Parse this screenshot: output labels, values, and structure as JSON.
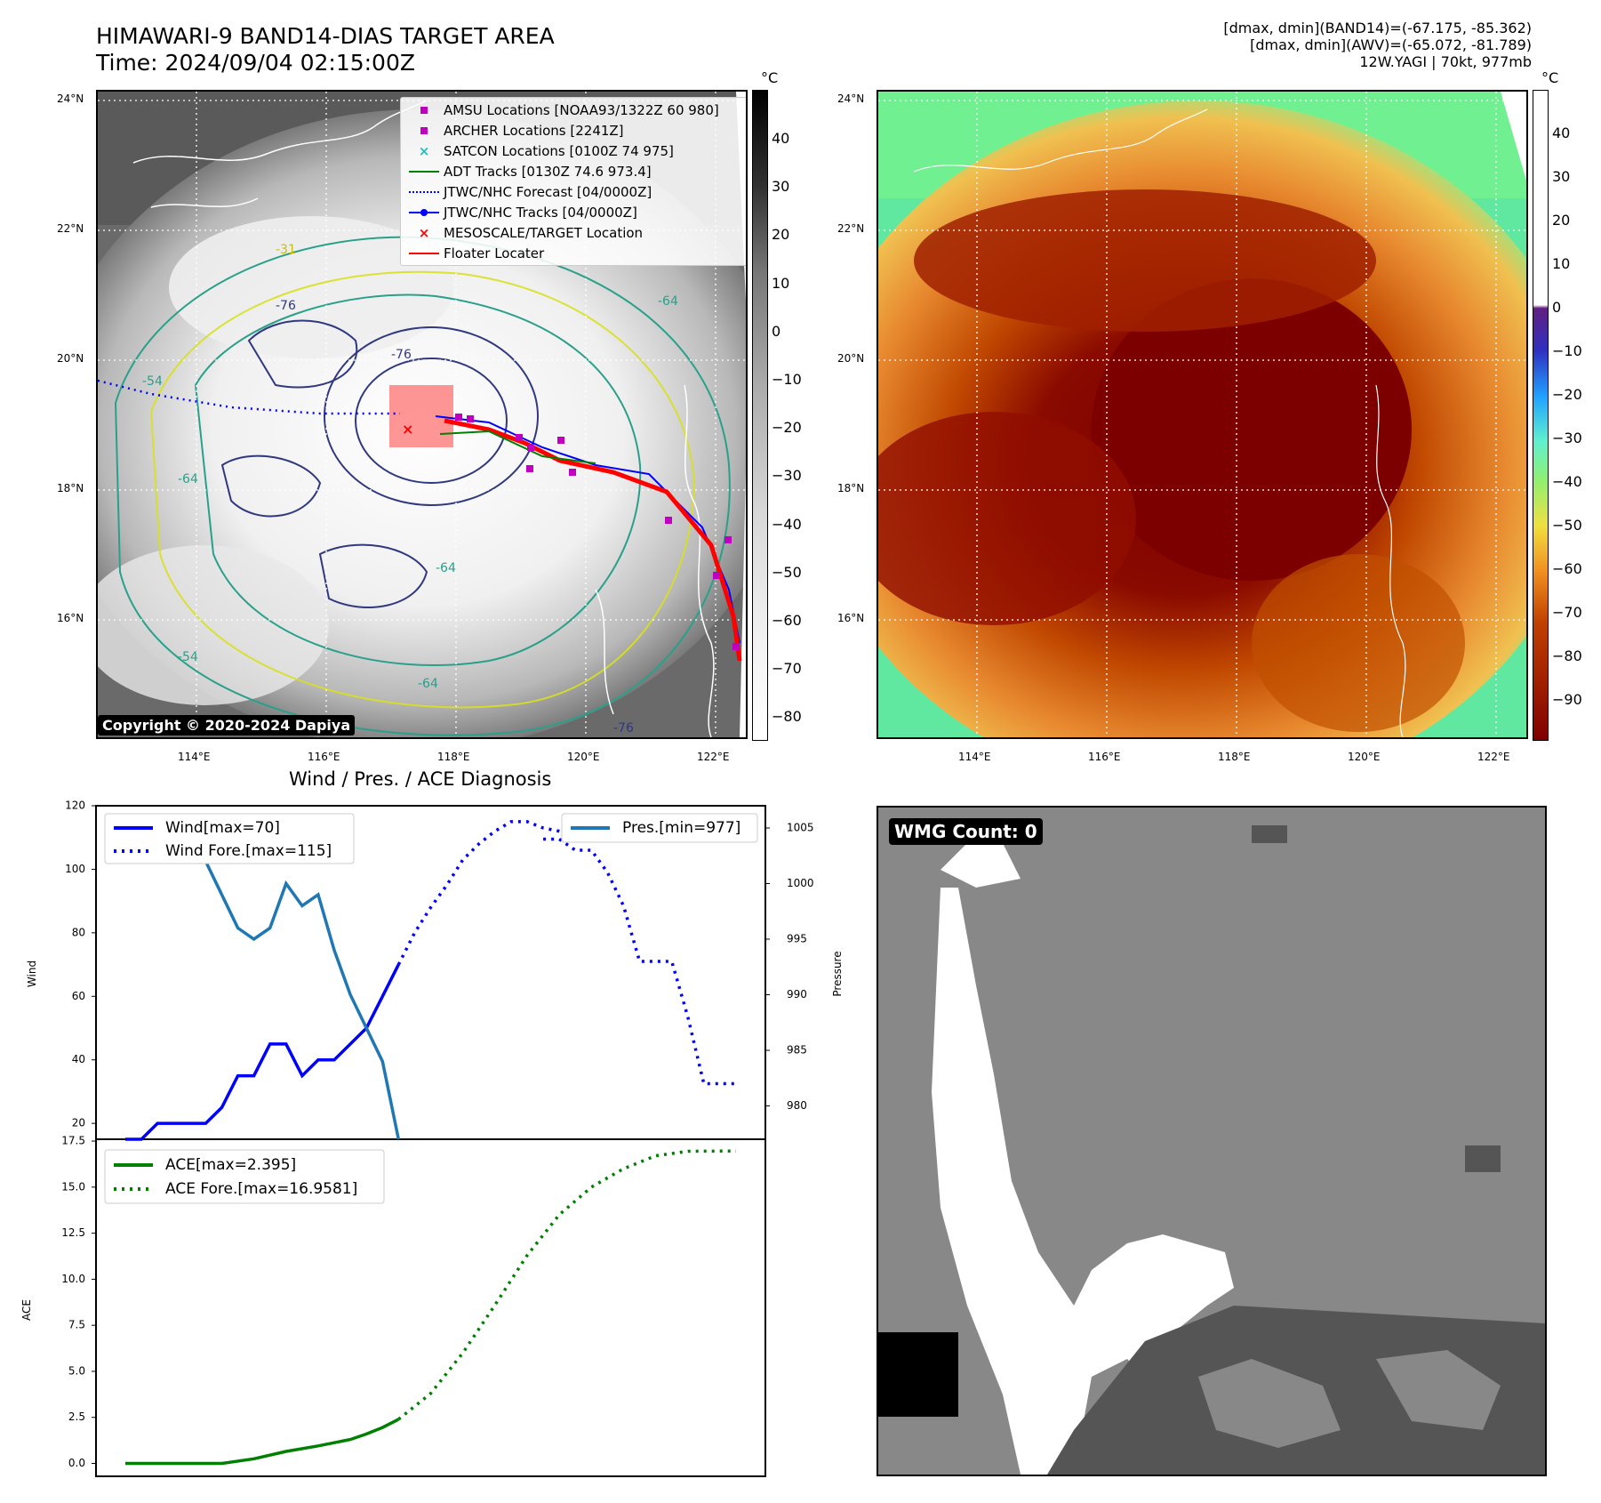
{
  "header": {
    "title_line1": "HIMAWARI-9 BAND14-DIAS TARGET AREA",
    "title_line2": "Time: 2024/09/04 02:15:00Z",
    "info_line1": "[dmax, dmin](BAND14)=(-67.175, -85.362)",
    "info_line2": "[dmax, dmin](AWV)=(-65.072, -81.789)",
    "info_line3": "12W.YAGI | 70kt, 977mb"
  },
  "map": {
    "lat_labels": [
      "24°N",
      "22°N",
      "20°N",
      "18°N",
      "16°N"
    ],
    "lon_labels": [
      "114°E",
      "116°E",
      "118°E",
      "120°E",
      "122°E"
    ],
    "copyright": "Copyright © 2020-2024 Dapiya",
    "colorbar_unit": "°C",
    "left_colorbar_ticks": [
      "40",
      "30",
      "20",
      "10",
      "0",
      "−10",
      "−20",
      "−30",
      "−40",
      "−50",
      "−60",
      "−70",
      "−80"
    ],
    "right_colorbar_ticks": [
      "40",
      "30",
      "20",
      "10",
      "0",
      "−10",
      "−20",
      "−30",
      "−40",
      "−50",
      "−60",
      "−70",
      "−80",
      "−90"
    ],
    "contour_labels": [
      "-76",
      "-64",
      "-54",
      "-31",
      "-76",
      "-64",
      "-54",
      "-64",
      "-76",
      "-64"
    ],
    "legend": [
      {
        "label": "AMSU Locations [NOAA93/1322Z 60 980]",
        "color": "#c000c0",
        "marker": "square"
      },
      {
        "label": "ARCHER Locations [2241Z]",
        "color": "#c000c0",
        "marker": "square"
      },
      {
        "label": "SATCON Locations [0100Z 74 975]",
        "color": "#20c0c0",
        "marker": "x"
      },
      {
        "label": "ADT Tracks [0130Z 74.6 973.4]",
        "color": "#008000",
        "marker": "line"
      },
      {
        "label": "JTWC/NHC Forecast [04/0000Z]",
        "color": "#0000ff",
        "marker": "dotted"
      },
      {
        "label": "JTWC/NHC Tracks [04/0000Z]",
        "color": "#0000ff",
        "marker": "line-dot"
      },
      {
        "label": "MESOSCALE/TARGET Location",
        "color": "#ff0000",
        "marker": "x"
      },
      {
        "label": "Floater Locater",
        "color": "#ff0000",
        "marker": "line"
      }
    ]
  },
  "diagnosis": {
    "title": "Wind / Pres. / ACE Diagnosis",
    "wind_ylabel": "Wind",
    "pres_ylabel": "Pressure",
    "ace_ylabel": "ACE",
    "wind_ticks": [
      "120",
      "100",
      "80",
      "60",
      "40",
      "20"
    ],
    "pres_ticks": [
      "1005",
      "1000",
      "995",
      "990",
      "985",
      "980"
    ],
    "ace_ticks": [
      "17.5",
      "15.0",
      "12.5",
      "10.0",
      "7.5",
      "5.0",
      "2.5",
      "0.0"
    ],
    "legend_wind": "Wind[max=70]",
    "legend_wind_fore": "Wind Fore.[max=115]",
    "legend_pres": "Pres.[min=977]",
    "legend_ace": "ACE[max=2.395]",
    "legend_ace_fore": "ACE Fore.[max=16.9581]"
  },
  "wmg": {
    "label": "WMG Count: 0"
  },
  "colors": {
    "wind": "#0000ff",
    "pres": "#1f77b4",
    "ace": "#008000"
  },
  "chart_data": [
    {
      "type": "line",
      "title": "Wind / Pres. / ACE Diagnosis",
      "ylabel": "Wind",
      "ylim": [
        15,
        120
      ],
      "xlim": [
        0,
        38
      ],
      "series": [
        {
          "name": "Wind[max=70]",
          "x": [
            0,
            1,
            2,
            3,
            4,
            5,
            6,
            7,
            8,
            9,
            10,
            11,
            12,
            13,
            14,
            15,
            16,
            17
          ],
          "values": [
            15,
            15,
            20,
            20,
            20,
            20,
            25,
            35,
            35,
            45,
            45,
            35,
            40,
            40,
            45,
            50,
            60,
            70
          ]
        },
        {
          "name": "Wind Fore.[max=115]",
          "x": [
            17,
            18,
            19,
            20,
            21,
            22,
            23,
            24,
            25,
            26,
            27,
            28
          ],
          "values": [
            70,
            80,
            88,
            95,
            103,
            108,
            112,
            115,
            115,
            113,
            112,
            110
          ]
        }
      ]
    },
    {
      "type": "line",
      "ylabel": "Pressure",
      "ylim": [
        977,
        1007
      ],
      "series": [
        {
          "name": "Pres.[min=977]",
          "x": [
            0,
            1,
            2,
            3,
            4,
            5,
            6,
            7,
            8,
            9,
            10,
            11,
            12,
            13,
            14,
            15,
            16,
            17
          ],
          "values": [
            1006,
            1006,
            1005,
            1004,
            1002,
            1002,
            999,
            996,
            995,
            996,
            1000,
            998,
            999,
            994,
            990,
            987,
            984,
            977
          ]
        },
        {
          "name": "Pres. Fore.",
          "x": [
            17,
            18,
            19,
            20,
            21,
            22,
            23,
            24,
            25,
            26,
            27,
            28,
            29,
            30,
            31,
            32,
            33,
            34,
            35,
            36,
            37,
            38
          ],
          "values": [
            null,
            null,
            null,
            null,
            null,
            null,
            null,
            null,
            null,
            1004,
            1004,
            1003,
            1003,
            1001,
            998,
            993,
            993,
            993,
            988,
            982,
            982,
            982
          ]
        }
      ]
    },
    {
      "type": "line",
      "ylabel": "ACE",
      "ylim": [
        -0.7,
        17.6
      ],
      "series": [
        {
          "name": "ACE[max=2.395]",
          "x": [
            0,
            2,
            4,
            6,
            8,
            10,
            12,
            14,
            15,
            16,
            17
          ],
          "values": [
            0,
            0,
            0,
            0,
            0.25,
            0.65,
            0.95,
            1.3,
            1.6,
            1.95,
            2.395
          ]
        },
        {
          "name": "ACE Fore.[max=16.9581]",
          "x": [
            17,
            19,
            21,
            23,
            25,
            27,
            29,
            31,
            33,
            35,
            37,
            38
          ],
          "values": [
            2.395,
            3.8,
            6.0,
            8.6,
            11.3,
            13.5,
            15.0,
            16.0,
            16.7,
            16.95,
            16.9581,
            16.9581
          ]
        }
      ]
    }
  ]
}
